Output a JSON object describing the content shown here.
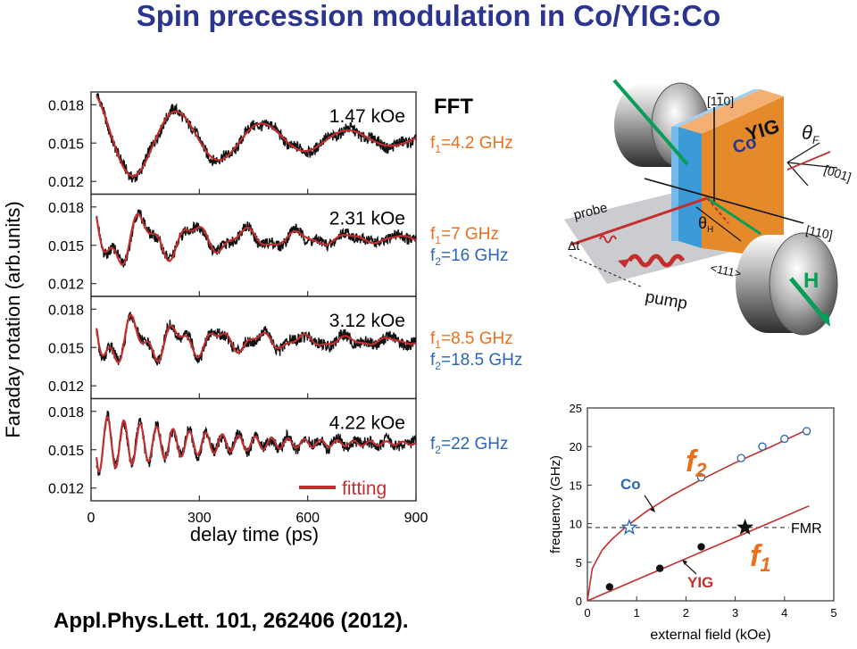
{
  "title": "Spin precession modulation in Co/YIG:Co",
  "citation": "Appl.Phys.Lett. 101, 262406 (2012).",
  "colors": {
    "fit": "#c42e2e",
    "data": "#111111",
    "title": "#2b3590",
    "orange": "#e8701c",
    "blue": "#2c65b4",
    "frame": "#333333"
  },
  "chart_data": [
    {
      "type": "line",
      "title": "",
      "xlabel": "delay time (ps)",
      "ylabel": "Faraday rotation (arb.units)",
      "xlim": [
        0,
        900
      ],
      "x_ticks": [
        "0",
        "300",
        "600",
        "900"
      ],
      "legend": {
        "label": "fitting",
        "placement": "bottom-right"
      },
      "panels": [
        {
          "field_label": "1.47 kOe",
          "ylim": [
            0.011,
            0.019
          ],
          "y_ticks": [
            "0.018",
            "0.015",
            "0.012"
          ],
          "series": [
            {
              "name": "fitting",
              "model": "damped-oscillation",
              "offset": 0.0153,
              "components": [
                {
                  "f_ghz": 4.2,
                  "amp": 0.0038,
                  "decay_ps": 420
                }
              ]
            }
          ]
        },
        {
          "field_label": "2.31 kOe",
          "ylim": [
            0.011,
            0.019
          ],
          "y_ticks": [
            "0.018",
            "0.015",
            "0.012"
          ],
          "series": [
            {
              "name": "fitting",
              "model": "damped-oscillation",
              "offset": 0.0155,
              "components": [
                {
                  "f_ghz": 7,
                  "amp": 0.0022,
                  "decay_ps": 380
                },
                {
                  "f_ghz": 16,
                  "amp": 0.0012,
                  "decay_ps": 250
                }
              ]
            }
          ]
        },
        {
          "field_label": "3.12 kOe",
          "ylim": [
            0.011,
            0.019
          ],
          "y_ticks": [
            "0.018",
            "0.015",
            "0.012"
          ],
          "series": [
            {
              "name": "fitting",
              "model": "damped-oscillation",
              "offset": 0.0155,
              "components": [
                {
                  "f_ghz": 8.5,
                  "amp": 0.0018,
                  "decay_ps": 400
                },
                {
                  "f_ghz": 18.5,
                  "amp": 0.0012,
                  "decay_ps": 280
                }
              ]
            }
          ]
        },
        {
          "field_label": "4.22 kOe",
          "ylim": [
            0.011,
            0.019
          ],
          "y_ticks": [
            "0.018",
            "0.015",
            "0.012"
          ],
          "series": [
            {
              "name": "fitting",
              "model": "damped-oscillation",
              "offset": 0.0155,
              "components": [
                {
                  "f_ghz": 22,
                  "amp": 0.0024,
                  "decay_ps": 300
                }
              ]
            }
          ]
        }
      ],
      "fft_header": "FFT",
      "fft": [
        {
          "lines": [
            {
              "f": "f",
              "sub": "1",
              "rest": "=4.2 GHz",
              "color": "orange"
            }
          ]
        },
        {
          "lines": [
            {
              "f": "f",
              "sub": "1",
              "rest": "=7 GHz",
              "color": "orange"
            },
            {
              "f": "f",
              "sub": "2",
              "rest": "=16 GHz",
              "color": "blue"
            }
          ]
        },
        {
          "lines": [
            {
              "f": "f",
              "sub": "1",
              "rest": "=8.5 GHz",
              "color": "orange"
            },
            {
              "f": "f",
              "sub": "2",
              "rest": "=18.5 GHz",
              "color": "blue"
            }
          ]
        },
        {
          "lines": [
            {
              "f": "f",
              "sub": "2",
              "rest": "=22 GHz",
              "color": "blue"
            }
          ]
        }
      ]
    },
    {
      "type": "scatter",
      "xlabel": "external field (kOe)",
      "ylabel": "frequency (GHz)",
      "xlim": [
        0,
        5
      ],
      "ylim": [
        0,
        25
      ],
      "x_ticks": [
        "0",
        "1",
        "2",
        "3",
        "4",
        "5"
      ],
      "y_ticks": [
        "0",
        "5",
        "10",
        "15",
        "20",
        "25"
      ],
      "series": [
        {
          "name": "f1",
          "label": "f",
          "label_sub": "1",
          "marker": "filled-circle",
          "color": "#111111",
          "x": [
            0.45,
            1.47,
            2.31
          ],
          "y": [
            1.8,
            4.2,
            7.0
          ]
        },
        {
          "name": "f2",
          "label": "f",
          "label_sub": "2",
          "marker": "open-circle",
          "color": "#2c65b4",
          "x": [
            2.31,
            3.12,
            3.55,
            4.0,
            4.45
          ],
          "y": [
            16.0,
            18.5,
            20.0,
            21.0,
            22.0
          ]
        }
      ],
      "fit_lines": [
        {
          "name": "YIG",
          "label": "YIG",
          "color": "#c42e2e",
          "x": [
            0,
            4.5
          ],
          "y": [
            0,
            12.3
          ]
        },
        {
          "name": "Co",
          "label": "Co",
          "color": "#c42e2e",
          "x": [
            0,
            0.1,
            0.3,
            0.5,
            0.8,
            1.2,
            1.7,
            2.3,
            3.0,
            3.7,
            4.5
          ],
          "y": [
            0,
            4.2,
            6.6,
            8.0,
            9.7,
            11.6,
            13.6,
            15.7,
            17.9,
            19.9,
            22.3
          ]
        }
      ],
      "fmr_line": {
        "label": "FMR",
        "y": 9.5
      },
      "star_markers": [
        {
          "x": 0.85,
          "y": 9.5,
          "fill": "open",
          "color": "#2c65b4"
        },
        {
          "x": 3.2,
          "y": 9.5,
          "fill": "filled",
          "color": "#111111"
        }
      ]
    }
  ],
  "setup": {
    "labels": {
      "axis_1": "[1",
      "axis_1_bar": "1",
      "axis_1_end": "0]",
      "axis_001": "[001]",
      "axis_110": "[110]",
      "axis_111": "<111>",
      "yig": "YIG",
      "co": "Co",
      "theta_f": "θ",
      "theta_f_sub": "F",
      "theta_h": "θ",
      "theta_h_sub": "H",
      "probe": "probe",
      "delta_t": "Δt",
      "pump": "pump",
      "field": "H"
    }
  }
}
